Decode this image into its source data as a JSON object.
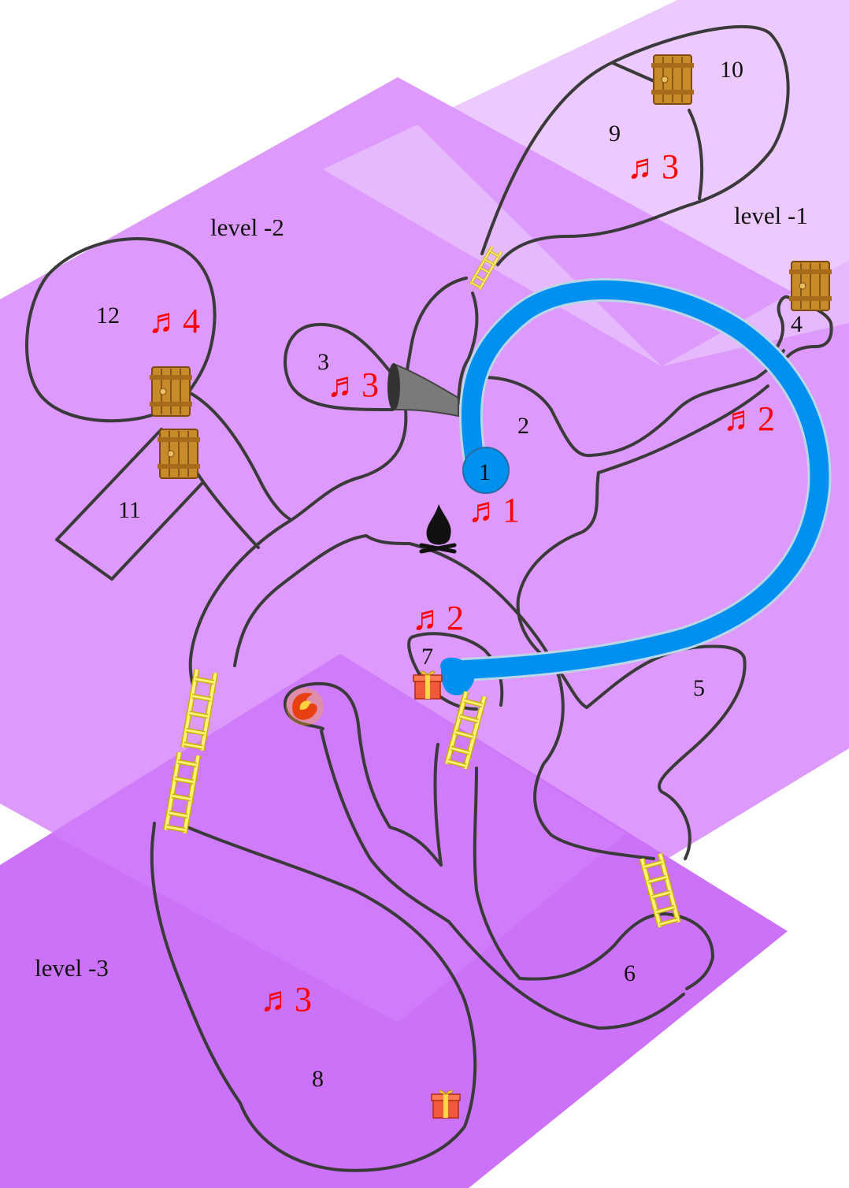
{
  "colors": {
    "level_-1": "#eccaff",
    "level_-2": "#dd99fb",
    "level_-3": "#cc72f9",
    "overlap": "#e6b8fc",
    "river": "#0090f0",
    "wall": "#3a3a3a",
    "note": "#ff0000"
  },
  "levels": [
    {
      "id": "level_-1",
      "label": "level -1"
    },
    {
      "id": "level_-2",
      "label": "level -2"
    },
    {
      "id": "level_-3",
      "label": "level -3"
    }
  ],
  "rooms": [
    {
      "id": "1",
      "label": "1"
    },
    {
      "id": "2",
      "label": "2"
    },
    {
      "id": "3",
      "label": "3"
    },
    {
      "id": "4",
      "label": "4"
    },
    {
      "id": "5",
      "label": "5"
    },
    {
      "id": "6",
      "label": "6"
    },
    {
      "id": "7",
      "label": "7"
    },
    {
      "id": "8",
      "label": "8"
    },
    {
      "id": "9",
      "label": "9"
    },
    {
      "id": "10",
      "label": "10"
    },
    {
      "id": "11",
      "label": "11"
    },
    {
      "id": "12",
      "label": "12"
    }
  ],
  "notes": [
    {
      "room": "9",
      "text": "♬3"
    },
    {
      "room": "12",
      "text": "♬4"
    },
    {
      "room": "3",
      "text": "♬3"
    },
    {
      "room": "4",
      "text": "♬2"
    },
    {
      "room": "1",
      "text": "♬1"
    },
    {
      "room": "7",
      "text": "♬2"
    },
    {
      "room": "8",
      "text": "♬3"
    }
  ],
  "icons": {
    "door": "door-icon",
    "ladder": "ladder-icon",
    "campfire": "campfire-icon",
    "gift": "gift-icon",
    "phoenix": "phoenix-icon",
    "horn": "horn-icon",
    "river": "river-icon"
  }
}
